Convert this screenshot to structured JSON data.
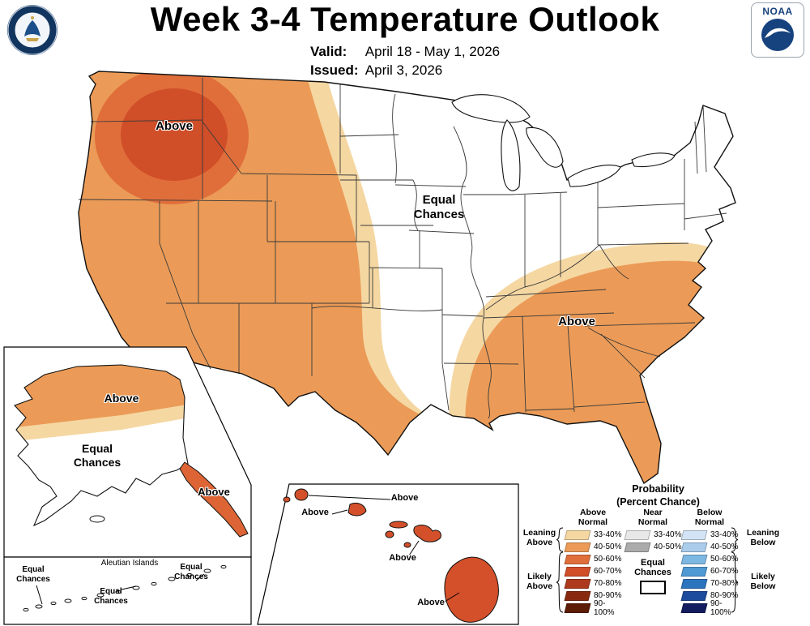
{
  "header": {
    "title": "Week 3-4 Temperature Outlook",
    "valid_label": "Valid:",
    "valid_value": "April 18 - May 1, 2026",
    "issued_label": "Issued:",
    "issued_value": "April 3, 2026",
    "noaa_logo_text": "NOAA"
  },
  "icons": {
    "doc_seal": "department-of-commerce-seal",
    "noaa_logo": "noaa-circle-seagull-logo"
  },
  "conus": {
    "above_northwest_label": "Above",
    "above_southeast_label": "Above",
    "equal_chances_label": "Equal\nChances"
  },
  "alaska": {
    "above_label": "Above",
    "equal_chances_label": "Equal\nChances",
    "panhandle_above_label": "Above",
    "aleutians_title": "Aleutian Islands",
    "aleutians_ec_left": "Equal\nChances",
    "aleutians_ec_mid": "Equal\nChances",
    "aleutians_ec_right": "Equal\nChances"
  },
  "hawaii": {
    "labels": [
      "Above",
      "Above",
      "Above",
      "Above"
    ]
  },
  "legend": {
    "title_line1": "Probability",
    "title_line2": "(Percent Chance)",
    "above": {
      "header": "Above\nNormal",
      "entries": [
        {
          "range": "33-40%",
          "color": "#F5D7A2"
        },
        {
          "range": "40-50%",
          "color": "#EB9B57"
        },
        {
          "range": "50-60%",
          "color": "#E06E3B"
        },
        {
          "range": "60-70%",
          "color": "#D04E28"
        },
        {
          "range": "70-80%",
          "color": "#AD3A1D"
        },
        {
          "range": "80-90%",
          "color": "#88290F"
        },
        {
          "range": "90-100%",
          "color": "#5C1C06"
        }
      ]
    },
    "near": {
      "header": "Near\nNormal",
      "entries": [
        {
          "range": "33-40%",
          "color": "#E8E8E8"
        },
        {
          "range": "40-50%",
          "color": "#ABABAB"
        }
      ]
    },
    "below": {
      "header": "Below\nNormal",
      "entries": [
        {
          "range": "33-40%",
          "color": "#D2E4F5"
        },
        {
          "range": "40-50%",
          "color": "#AACDEC"
        },
        {
          "range": "50-60%",
          "color": "#7DB8E2"
        },
        {
          "range": "60-70%",
          "color": "#4F9AD4"
        },
        {
          "range": "70-80%",
          "color": "#2C74BE"
        },
        {
          "range": "80-90%",
          "color": "#1C4A9C"
        },
        {
          "range": "90-100%",
          "color": "#131C5E"
        }
      ]
    },
    "equal_chances_label": "Equal\nChances",
    "equal_chances_color": "#FFFFFF",
    "leaning_above": "Leaning\nAbove",
    "likely_above": "Likely\nAbove",
    "leaning_below": "Leaning\nBelow",
    "likely_below": "Likely\nBelow"
  },
  "map_colors": {
    "above_33_40": "#F5D7A2",
    "above_40_50": "#EB9B57",
    "above_50_60": "#E06E3B",
    "above_60_70": "#D04E28",
    "equal_chances": "#FFFFFF",
    "hawaii_islands": "#D4502A",
    "alaska_panhandle": "#DD6535",
    "outline": "#1A1A1A"
  }
}
